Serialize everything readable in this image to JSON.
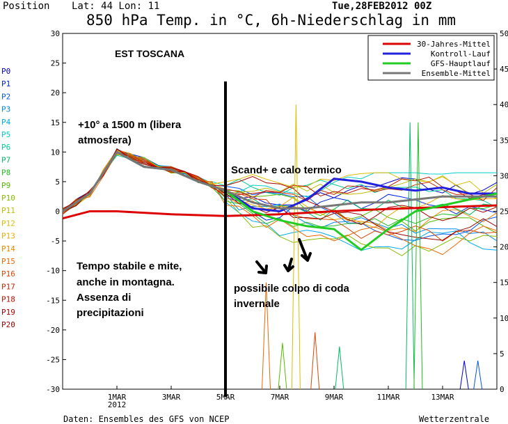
{
  "header": {
    "position_label": "Position",
    "lat_lon": "Lat: 44 Lon: 11",
    "run_date": "Tue,28FEB2012 00Z",
    "title": "850 hPa Temp. in °C, 6h-Niederschlag in mm"
  },
  "footer": {
    "source": "Daten: Ensembles des GFS von NCEP",
    "brand": "Wetterzentrale"
  },
  "annotations": {
    "region": "EST TOSCANA",
    "warm_note_1": "+10° a 1500 m (libera",
    "warm_note_2": "atmosfera)",
    "scand": "Scand+ e calo termico",
    "stable_1": "Tempo stabile e mite,",
    "stable_2": "anche in montagna.",
    "stable_3": "Assenza di",
    "stable_4": "precipitazioni",
    "winter_1": "possibile colpo di coda",
    "winter_2": "invernale"
  },
  "member_labels": [
    "P0",
    "P1",
    "P2",
    "P3",
    "P4",
    "P5",
    "P6",
    "P7",
    "P8",
    "P9",
    "P10",
    "P11",
    "P12",
    "P13",
    "P14",
    "P15",
    "P16",
    "P17",
    "P18",
    "P19",
    "P20"
  ],
  "member_colors": [
    "#0000cc",
    "#0022dd",
    "#0055ee",
    "#0088ee",
    "#00aaee",
    "#00cccc",
    "#00cc99",
    "#00bb66",
    "#22bb22",
    "#55bb00",
    "#88bb00",
    "#bbbb00",
    "#ddbb00",
    "#eeaa00",
    "#ee8800",
    "#ee6600",
    "#dd4400",
    "#cc2200",
    "#bb1100",
    "#aa0000",
    "#990000"
  ],
  "chart_data": {
    "type": "line",
    "title": "850 hPa Temp. in °C, 6h-Niederschlag in mm",
    "x_ticks": [
      "1MAR\n2012",
      "3MAR",
      "5MAR",
      "7MAR",
      "9MAR",
      "11MAR",
      "13MAR"
    ],
    "x_range": [
      "2012-02-28",
      "2012-03-15"
    ],
    "y_left": {
      "range": [
        -30,
        30
      ],
      "ticks": [
        30,
        25,
        20,
        15,
        10,
        5,
        0,
        -5,
        -10,
        -15,
        -20,
        -25,
        -30
      ]
    },
    "y_right": {
      "range": [
        0,
        50
      ],
      "ticks": [
        50,
        45,
        40,
        35,
        30,
        25,
        20,
        15,
        10,
        5,
        0
      ]
    },
    "grid": false,
    "legend_position": "top-right",
    "series": [
      {
        "name": "30-Jahres-Mittel",
        "color": "#dd0000",
        "x": [
          "2012-02-28",
          "2012-02-29",
          "2012-03-01",
          "2012-03-03",
          "2012-03-05",
          "2012-03-07",
          "2012-03-09",
          "2012-03-11",
          "2012-03-13",
          "2012-03-15"
        ],
        "values": [
          -1.2,
          0.0,
          0.0,
          -0.5,
          -0.8,
          -0.5,
          0.0,
          0.4,
          0.7,
          1.0
        ]
      },
      {
        "name": "Kontroll-Lauf",
        "color": "#2222dd",
        "x": [
          "2012-02-28",
          "2012-02-29",
          "2012-03-01",
          "2012-03-02",
          "2012-03-03",
          "2012-03-04",
          "2012-03-05",
          "2012-03-06",
          "2012-03-07",
          "2012-03-08",
          "2012-03-09",
          "2012-03-10",
          "2012-03-11",
          "2012-03-12",
          "2012-03-13",
          "2012-03-14",
          "2012-03-15"
        ],
        "values": [
          0,
          3,
          10,
          7.5,
          7,
          5,
          3.5,
          0.5,
          0,
          2,
          5.5,
          5,
          4,
          3.5,
          4,
          3,
          3
        ]
      },
      {
        "name": "GFS-Hauptlauf",
        "color": "#22cc22",
        "x": [
          "2012-02-28",
          "2012-02-29",
          "2012-03-01",
          "2012-03-02",
          "2012-03-03",
          "2012-03-04",
          "2012-03-05",
          "2012-03-06",
          "2012-03-07",
          "2012-03-08",
          "2012-03-09",
          "2012-03-10",
          "2012-03-11",
          "2012-03-12",
          "2012-03-13",
          "2012-03-14",
          "2012-03-15"
        ],
        "values": [
          0,
          3,
          10,
          7.5,
          7,
          5,
          3.5,
          0,
          -1.5,
          -2.5,
          -3,
          -6.5,
          -3,
          0,
          1,
          2,
          3
        ]
      },
      {
        "name": "Ensemble-Mittel",
        "color": "#777777",
        "x": [
          "2012-02-28",
          "2012-02-29",
          "2012-03-01",
          "2012-03-02",
          "2012-03-03",
          "2012-03-04",
          "2012-03-05",
          "2012-03-06",
          "2012-03-07",
          "2012-03-08",
          "2012-03-09",
          "2012-03-10",
          "2012-03-11",
          "2012-03-12",
          "2012-03-13",
          "2012-03-14",
          "2012-03-15"
        ],
        "values": [
          0,
          3,
          10,
          7.5,
          7,
          5,
          3.5,
          1.5,
          0.5,
          0.5,
          1,
          1.5,
          1.5,
          2,
          2.5,
          2.5,
          2.5
        ]
      }
    ]
  }
}
